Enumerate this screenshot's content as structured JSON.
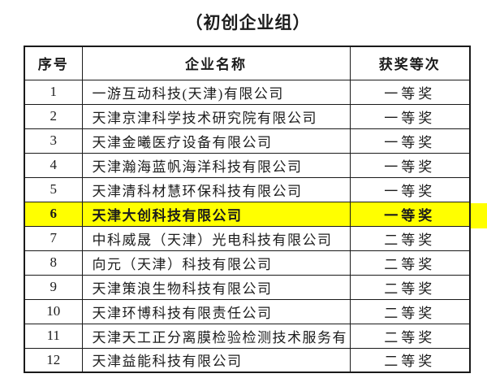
{
  "page": {
    "title": "（初创企业组）"
  },
  "table": {
    "headers": [
      "序号",
      "企业名称",
      "获奖等次"
    ],
    "rows": [
      {
        "no": "1",
        "company": "一游互动科技(天津)有限公司",
        "award": "一等奖",
        "highlighted": false
      },
      {
        "no": "2",
        "company": "天津京津科学技术研究院有限公司",
        "award": "一等奖",
        "highlighted": false
      },
      {
        "no": "3",
        "company": "天津金曦医疗设备有限公司",
        "award": "一等奖",
        "highlighted": false
      },
      {
        "no": "4",
        "company": "天津瀚海蓝帆海洋科技有限公司",
        "award": "一等奖",
        "highlighted": false
      },
      {
        "no": "5",
        "company": "天津清科材慧环保科技有限公司",
        "award": "一等奖",
        "highlighted": false
      },
      {
        "no": "6",
        "company": "天津大创科技有限公司",
        "award": "一等奖",
        "highlighted": true
      },
      {
        "no": "7",
        "company": "中科威晟（天津）光电科技有限公司",
        "award": "二等奖",
        "highlighted": false
      },
      {
        "no": "8",
        "company": "向元（天津）科技有限公司",
        "award": "二等奖",
        "highlighted": false
      },
      {
        "no": "9",
        "company": "天津策浪生物科技有限公司",
        "award": "二等奖",
        "highlighted": false
      },
      {
        "no": "10",
        "company": "天津环博科技有限责任公司",
        "award": "二等奖",
        "highlighted": false
      },
      {
        "no": "11",
        "company": "天津天工正分离膜检验检测技术服务有",
        "award": "二等奖",
        "highlighted": false
      },
      {
        "no": "12",
        "company": "天津益能科技有限公司",
        "award": "二等奖",
        "highlighted": false
      }
    ]
  },
  "colors": {
    "highlight": "#ffff00",
    "border": "#1a1a1a",
    "text": "#1c1c1c",
    "background": "#ffffff"
  }
}
